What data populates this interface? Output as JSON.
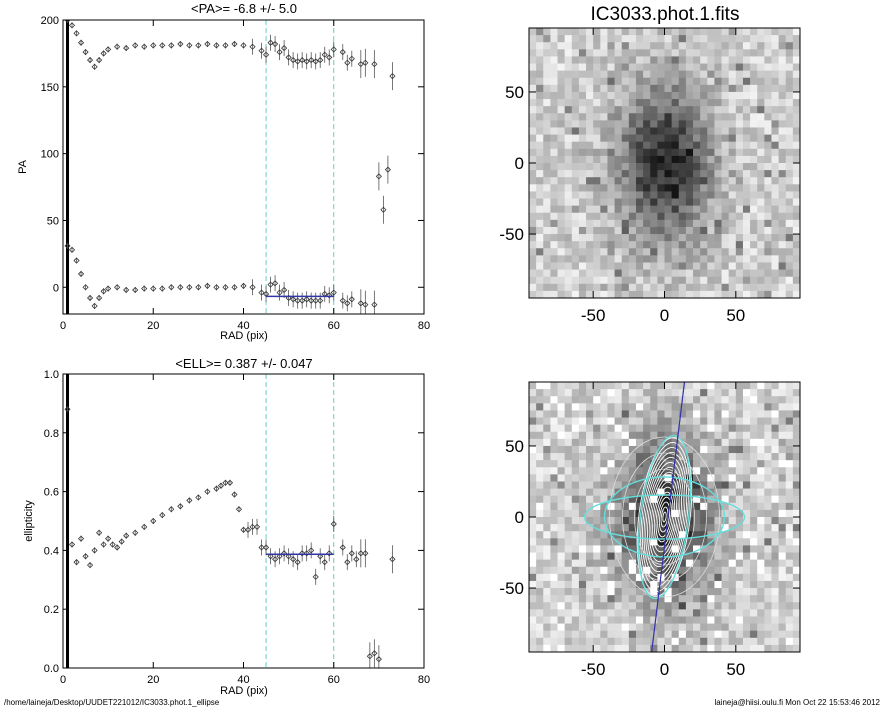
{
  "chart_data": [
    {
      "type": "scatter",
      "title": "<PA>=  -6.8 +/-   5.0",
      "xlabel": "RAD (pix)",
      "ylabel": "PA",
      "xlim": [
        0,
        80
      ],
      "ylim": [
        -20,
        200
      ],
      "xticks": [
        "0",
        "20",
        "40",
        "60",
        "80"
      ],
      "yticks": [
        "0",
        "50",
        "100",
        "150",
        "200"
      ],
      "vlines": [
        45,
        60
      ],
      "fit_line": {
        "x": [
          45,
          60
        ],
        "y": -6.8
      },
      "series": [
        {
          "points": [
            [
              1,
              200
            ],
            [
              2,
              196
            ],
            [
              3,
              190
            ],
            [
              4,
              183
            ],
            [
              5,
              176
            ],
            [
              6,
              170
            ],
            [
              7,
              165
            ],
            [
              8,
              170
            ],
            [
              9,
              175
            ],
            [
              10,
              178
            ],
            [
              12,
              180
            ],
            [
              14,
              179
            ],
            [
              16,
              181
            ],
            [
              18,
              180
            ],
            [
              20,
              181
            ],
            [
              22,
              181
            ],
            [
              24,
              181
            ],
            [
              26,
              182
            ],
            [
              28,
              181
            ],
            [
              30,
              181
            ],
            [
              32,
              182
            ],
            [
              34,
              181
            ],
            [
              36,
              181
            ],
            [
              38,
              182
            ],
            [
              40,
              181
            ],
            [
              42,
              180
            ],
            [
              44,
              177
            ],
            [
              45,
              174
            ],
            [
              46,
              183
            ],
            [
              47,
              182
            ],
            [
              48,
              176
            ],
            [
              49,
              179
            ],
            [
              50,
              172
            ],
            [
              51,
              170
            ],
            [
              52,
              169
            ],
            [
              53,
              170
            ],
            [
              54,
              169
            ],
            [
              55,
              170
            ],
            [
              56,
              169
            ],
            [
              57,
              170
            ],
            [
              58,
              174
            ],
            [
              59,
              172
            ],
            [
              60,
              178
            ],
            [
              62,
              176
            ],
            [
              63,
              168
            ],
            [
              64,
              171
            ],
            [
              66,
              167
            ],
            [
              67,
              168
            ],
            [
              69,
              167
            ],
            [
              70,
              83
            ],
            [
              71,
              58
            ],
            [
              72,
              88
            ],
            [
              73,
              158
            ]
          ]
        },
        {
          "points": [
            [
              1,
              31
            ],
            [
              2,
              28
            ],
            [
              3,
              20
            ],
            [
              4,
              10
            ],
            [
              5,
              0
            ],
            [
              6,
              -8
            ],
            [
              7,
              -14
            ],
            [
              8,
              -8
            ],
            [
              9,
              -3
            ],
            [
              10,
              -1
            ],
            [
              12,
              0
            ],
            [
              14,
              -2
            ],
            [
              16,
              -2
            ],
            [
              18,
              -1
            ],
            [
              20,
              -1
            ],
            [
              22,
              -1
            ],
            [
              24,
              0
            ],
            [
              26,
              0
            ],
            [
              28,
              0
            ],
            [
              30,
              0
            ],
            [
              32,
              1
            ],
            [
              34,
              0
            ],
            [
              36,
              0
            ],
            [
              38,
              0
            ],
            [
              40,
              1
            ],
            [
              42,
              0
            ],
            [
              44,
              -4
            ],
            [
              45,
              -5
            ],
            [
              46,
              2
            ],
            [
              47,
              3
            ],
            [
              48,
              -4
            ],
            [
              49,
              -2
            ],
            [
              50,
              -8
            ],
            [
              51,
              -9
            ],
            [
              52,
              -10
            ],
            [
              53,
              -10
            ],
            [
              54,
              -9
            ],
            [
              55,
              -10
            ],
            [
              56,
              -10
            ],
            [
              57,
              -10
            ],
            [
              58,
              -5
            ],
            [
              59,
              -6
            ],
            [
              60,
              -4
            ],
            [
              62,
              -10
            ],
            [
              63,
              -12
            ],
            [
              64,
              -9
            ],
            [
              66,
              -12
            ],
            [
              67,
              -13
            ],
            [
              69,
              -13
            ]
          ]
        }
      ]
    },
    {
      "type": "scatter",
      "title": "<ELL>= 0.387 +/-  0.047",
      "xlabel": "RAD (pix)",
      "ylabel": "ellipticity",
      "xlim": [
        0,
        80
      ],
      "ylim": [
        0.0,
        1.0
      ],
      "xticks": [
        "0",
        "20",
        "40",
        "60",
        "80"
      ],
      "yticks": [
        "0.0",
        "0.2",
        "0.4",
        "0.6",
        "0.8",
        "1.0"
      ],
      "vlines": [
        45,
        60
      ],
      "fit_line": {
        "x": [
          45,
          60
        ],
        "y": 0.387
      },
      "series": [
        {
          "points": [
            [
              1,
              0.88
            ],
            [
              2,
              0.42
            ],
            [
              3,
              0.36
            ],
            [
              4,
              0.44
            ],
            [
              5,
              0.38
            ],
            [
              6,
              0.35
            ],
            [
              7,
              0.4
            ],
            [
              8,
              0.46
            ],
            [
              9,
              0.42
            ],
            [
              10,
              0.44
            ],
            [
              11,
              0.42
            ],
            [
              12,
              0.41
            ],
            [
              13,
              0.43
            ],
            [
              14,
              0.45
            ],
            [
              16,
              0.46
            ],
            [
              18,
              0.48
            ],
            [
              20,
              0.5
            ],
            [
              22,
              0.52
            ],
            [
              24,
              0.54
            ],
            [
              26,
              0.55
            ],
            [
              28,
              0.57
            ],
            [
              30,
              0.58
            ],
            [
              32,
              0.6
            ],
            [
              34,
              0.61
            ],
            [
              35,
              0.62
            ],
            [
              36,
              0.63
            ],
            [
              37,
              0.63
            ],
            [
              38,
              0.59
            ],
            [
              39,
              0.54
            ],
            [
              40,
              0.47
            ],
            [
              41,
              0.47
            ],
            [
              42,
              0.48
            ],
            [
              43,
              0.48
            ],
            [
              44,
              0.41
            ],
            [
              45,
              0.41
            ],
            [
              46,
              0.38
            ],
            [
              47,
              0.37
            ],
            [
              48,
              0.38
            ],
            [
              49,
              0.39
            ],
            [
              50,
              0.38
            ],
            [
              51,
              0.37
            ],
            [
              52,
              0.36
            ],
            [
              53,
              0.39
            ],
            [
              54,
              0.39
            ],
            [
              55,
              0.4
            ],
            [
              56,
              0.31
            ],
            [
              57,
              0.38
            ],
            [
              58,
              0.36
            ],
            [
              59,
              0.39
            ],
            [
              60,
              0.49
            ],
            [
              62,
              0.41
            ],
            [
              63,
              0.36
            ],
            [
              64,
              0.39
            ],
            [
              65,
              0.37
            ],
            [
              66,
              0.39
            ],
            [
              67,
              0.39
            ],
            [
              68,
              0.04
            ],
            [
              69,
              0.05
            ],
            [
              70,
              0.03
            ],
            [
              73,
              0.37
            ]
          ]
        }
      ]
    },
    {
      "type": "heatmap",
      "title": "IC3033.phot.1.fits",
      "xlim": [
        -95,
        95
      ],
      "ylim": [
        -95,
        95
      ],
      "xticks": [
        "-50",
        "0",
        "50"
      ],
      "yticks": [
        "-50",
        "0",
        "50"
      ]
    },
    {
      "type": "heatmap",
      "title": "",
      "xlim": [
        -95,
        95
      ],
      "ylim": [
        -95,
        95
      ],
      "xticks": [
        "-50",
        "0",
        "50"
      ],
      "yticks": [
        "-50",
        "0",
        "50"
      ]
    }
  ],
  "footer": {
    "left": "/home/laineja/Desktop/UUDET221012/IC3033.phot.1_ellipse",
    "right": "laineja@hiisi.oulu.fi  Mon Oct 22 15:53:46 2012"
  },
  "colors": {
    "fit_line": "#3333aa",
    "vline": "#66cccc",
    "contour": "#66dddd"
  }
}
